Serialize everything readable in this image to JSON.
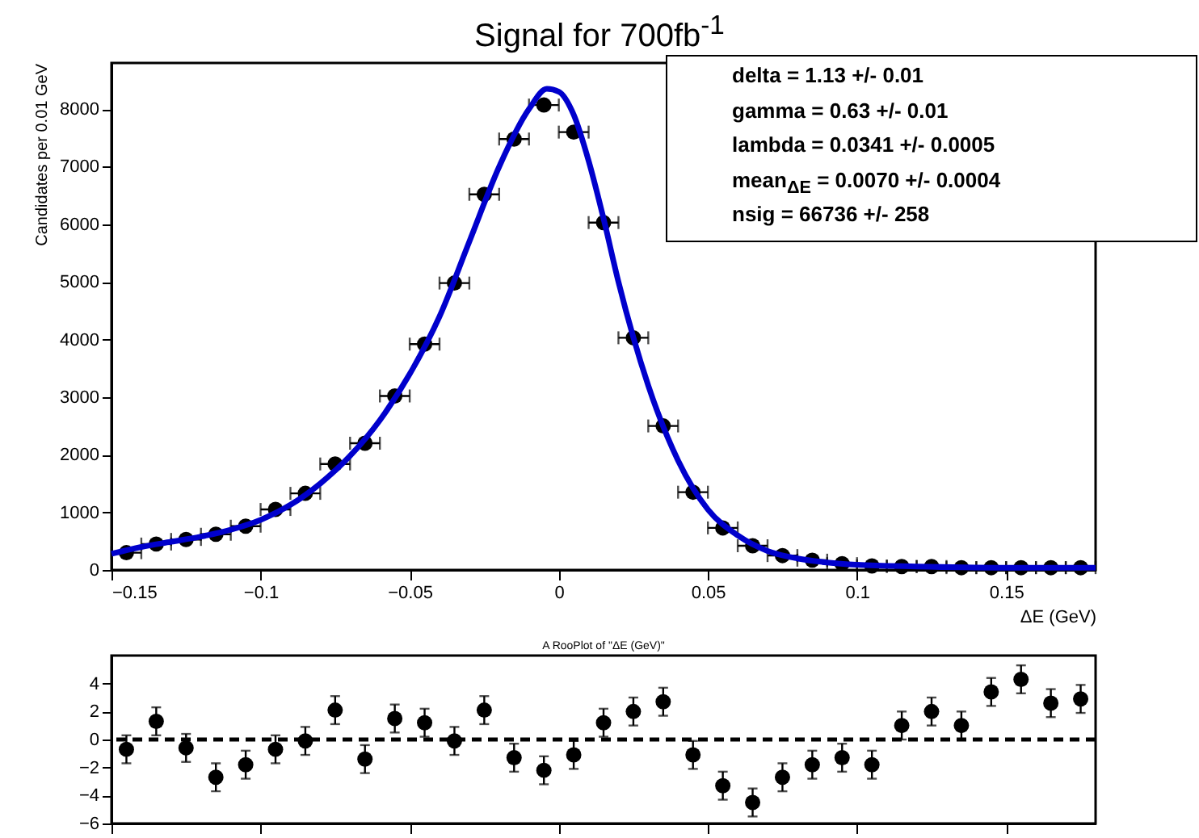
{
  "chart_data": [
    {
      "type": "scatter",
      "title": "Signal for 700fb$^{-1}$",
      "xlabel": "ΔE (GeV)",
      "ylabel": "Candidates per 0.01 GeV",
      "annotations": [
        "delta =  1.13 +/- 0.01",
        "gamma =  0.63 +/- 0.01",
        "lambda =  0.0341 +/- 0.0005",
        "mean$_{ΔE}$ =  0.0070 +/- 0.0004",
        "nsig =  66736 +/- 258"
      ],
      "xlim": [
        -0.15,
        0.18
      ],
      "xticks": [
        -0.15,
        -0.1,
        -0.05,
        0,
        0.05,
        0.1,
        0.15
      ],
      "ylim": [
        0,
        8800
      ],
      "yticks": [
        0,
        1000,
        2000,
        3000,
        4000,
        5000,
        6000,
        7000,
        8000
      ],
      "series": [
        {
          "type": "scatter",
          "marker": "circle",
          "color": "#000000",
          "x": [
            -0.145,
            -0.135,
            -0.125,
            -0.115,
            -0.105,
            -0.095,
            -0.085,
            -0.075,
            -0.065,
            -0.055,
            -0.045,
            -0.035,
            -0.025,
            -0.015,
            -0.005,
            0.005,
            0.015,
            0.025,
            0.035,
            0.045,
            0.055,
            0.065,
            0.075,
            0.085,
            0.095,
            0.105,
            0.115,
            0.125,
            0.135,
            0.145,
            0.155,
            0.165,
            0.175
          ],
          "values": [
            300,
            450,
            530,
            620,
            760,
            1050,
            1330,
            1840,
            2200,
            3020,
            3920,
            4980,
            6520,
            7480,
            8070,
            7600,
            6030,
            4030,
            2500,
            1350,
            730,
            420,
            250,
            170,
            110,
            70,
            60,
            60,
            40,
            40,
            40,
            40,
            40
          ],
          "xerrors": [
            0.005,
            0.005,
            0.005,
            0.005,
            0.005,
            0.005,
            0.005,
            0.005,
            0.005,
            0.005,
            0.005,
            0.005,
            0.005,
            0.005,
            0.005,
            0.005,
            0.005,
            0.005,
            0.005,
            0.005,
            0.005,
            0.005,
            0.005,
            0.005,
            0.005,
            0.005,
            0.005,
            0.005,
            0.005,
            0.005,
            0.005,
            0.005,
            0.005
          ]
        },
        {
          "type": "line",
          "color": "#0000cc",
          "x": [
            -0.15,
            -0.14,
            -0.13,
            -0.12,
            -0.11,
            -0.1,
            -0.09,
            -0.08,
            -0.07,
            -0.06,
            -0.05,
            -0.04,
            -0.03,
            -0.02,
            -0.01,
            -0.004,
            0,
            0.005,
            0.01,
            0.015,
            0.02,
            0.03,
            0.04,
            0.05,
            0.06,
            0.07,
            0.08,
            0.09,
            0.1,
            0.12,
            0.15,
            0.18
          ],
          "values": [
            280,
            400,
            490,
            580,
            700,
            870,
            1130,
            1500,
            1980,
            2600,
            3400,
            4400,
            5700,
            7000,
            8000,
            8350,
            8300,
            7900,
            7100,
            6100,
            5000,
            3200,
            1900,
            1050,
            600,
            330,
            200,
            130,
            90,
            60,
            40,
            40
          ]
        }
      ]
    },
    {
      "type": "scatter",
      "title": "A RooPlot of \"ΔE (GeV)\"",
      "xlim": [
        -0.15,
        0.18
      ],
      "xticks": [
        {
          "value": -0.15,
          "label": null
        },
        {
          "value": -0.1,
          "label": null
        },
        {
          "value": -0.05,
          "label": null
        },
        {
          "value": 0,
          "label": null
        },
        {
          "value": 0.05,
          "label": null
        },
        {
          "value": 0.1,
          "label": null
        },
        {
          "value": 0.15,
          "label": null
        }
      ],
      "ylim": [
        -6,
        6
      ],
      "yticks": [
        -6,
        -4,
        -2,
        0,
        2,
        4
      ],
      "tick_labels": "y",
      "ref_lines": [
        {
          "axis": "y",
          "value": 0,
          "color": "#000000",
          "line_style": "dashed"
        }
      ],
      "series": [
        {
          "type": "scatter",
          "marker": "circle",
          "color": "#000000",
          "x": [
            -0.145,
            -0.135,
            -0.125,
            -0.115,
            -0.105,
            -0.095,
            -0.085,
            -0.075,
            -0.065,
            -0.055,
            -0.045,
            -0.035,
            -0.025,
            -0.015,
            -0.005,
            0.005,
            0.015,
            0.025,
            0.035,
            0.045,
            0.055,
            0.065,
            0.075,
            0.085,
            0.095,
            0.105,
            0.115,
            0.125,
            0.135,
            0.145,
            0.155,
            0.165,
            0.175
          ],
          "values": [
            -0.7,
            1.3,
            -0.6,
            -2.7,
            -1.8,
            -0.7,
            -0.1,
            2.1,
            -1.4,
            1.5,
            1.2,
            -0.1,
            2.1,
            -1.3,
            -2.2,
            -1.1,
            1.2,
            2.0,
            2.7,
            -1.1,
            -3.3,
            -4.5,
            -2.7,
            -1.8,
            -1.3,
            -1.8,
            1.0,
            2.0,
            1.0,
            3.4,
            4.3,
            2.6,
            2.9
          ],
          "errors": [
            1,
            1,
            1,
            1,
            1,
            1,
            1,
            1,
            1,
            1,
            1,
            1,
            1,
            1,
            1,
            1,
            1,
            1,
            1,
            1,
            1,
            1,
            1,
            1,
            1,
            1,
            1,
            1,
            1,
            1,
            1,
            1,
            1
          ]
        }
      ]
    }
  ]
}
